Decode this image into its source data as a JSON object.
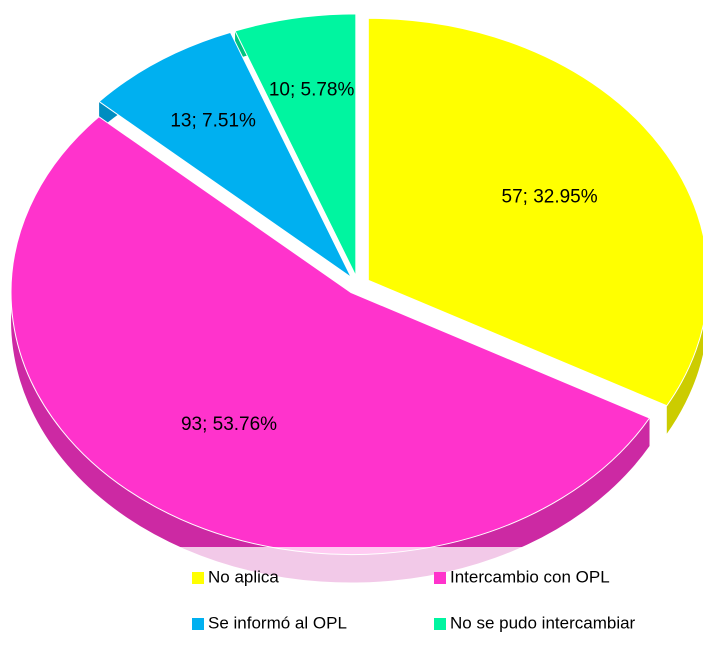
{
  "chart_data": {
    "type": "pie",
    "categories": [
      "No aplica",
      "Intercambio con OPL",
      "Se informó al OPL",
      "No se pudo intercambiar"
    ],
    "values": [
      57,
      93,
      13,
      10
    ],
    "value_labels": [
      "57; 32.95%",
      "93; 53.76%",
      "13; 7.51%",
      "10; 5.78%"
    ],
    "colors": [
      "#ffff00",
      "#ff33cc",
      "#00b0f0",
      "#00f5a0"
    ],
    "legend": "bottom"
  }
}
